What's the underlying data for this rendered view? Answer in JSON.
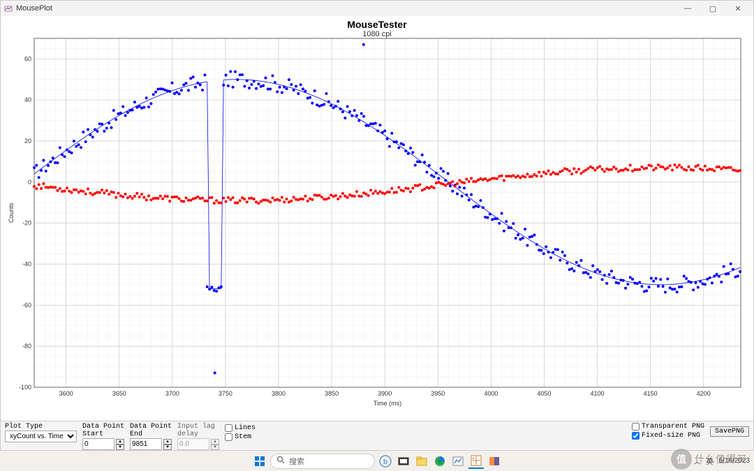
{
  "window": {
    "title": "MousePlot",
    "minimize": "—",
    "maximize": "▢",
    "close": "✕"
  },
  "chart": {
    "title": "MouseTester",
    "subtitle": "1080 cpi",
    "xlabel": "Time (ms)",
    "ylabel": "Counts",
    "xlim": [
      3570,
      4235
    ],
    "ylim": [
      -100,
      70
    ],
    "xtick_start": 3600,
    "xtick_step": 50,
    "ytick_start": -100,
    "ytick_step": 20,
    "background_color": "#ffffff",
    "grid_major_color": "#d0d0d0",
    "grid_minor_color": "#ececec",
    "axis_fontsize": 9,
    "series_blue": {
      "color": "#0000ff",
      "marker_size": 2,
      "line_width": 0.8,
      "amplitude": 50,
      "period": 800,
      "phase": 3560,
      "offset": 0,
      "noise": 4,
      "outliers": [
        [
          3740,
          -93
        ],
        [
          3880,
          67
        ]
      ],
      "pit": {
        "x": 3740,
        "depth": -52
      }
    },
    "series_red": {
      "color": "#ff0000",
      "marker_size": 2,
      "line_width": 0,
      "amplitude": 8,
      "period": 800,
      "phase": 3960,
      "offset": -1,
      "noise": 1.5
    }
  },
  "controls": {
    "plot_type_label": "Plot Type",
    "plot_type_value": "xyCount vs. Time",
    "dp_start_label": "Data Point\nStart",
    "dp_start_value": "0",
    "dp_end_label": "Data Point\nEnd",
    "dp_end_value": "9851",
    "input_lag_label": "Input lag\ndelay",
    "input_lag_value": "0.0",
    "lines_label": "Lines",
    "stem_label": "Stem",
    "transparent_label": "Transparent PNG",
    "fixed_size_label": "Fixed-size PNG",
    "fixed_size_checked": true,
    "save_label": "SavePNG"
  },
  "taskbar": {
    "search_placeholder": "搜索",
    "tray_ime": "英",
    "tray_date": "6/16/2023"
  },
  "watermark": {
    "text": "什么值得买",
    "badge": "值"
  }
}
